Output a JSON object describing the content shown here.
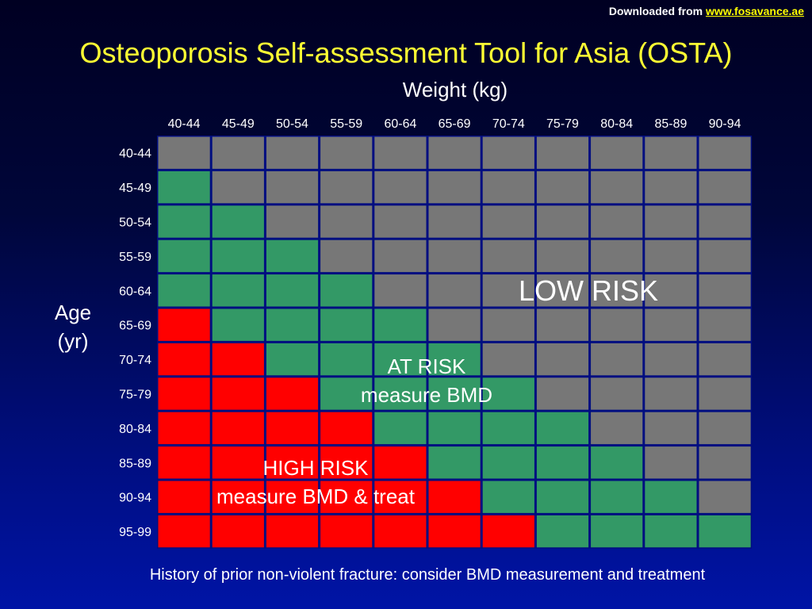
{
  "source": {
    "prefix": "Downloaded from ",
    "link": "www.fosavance.ae"
  },
  "colors": {
    "low": "#777777",
    "at_risk": "#339966",
    "high": "#ff0000",
    "grid_lines": "#000e80",
    "title": "#ffff33"
  },
  "annotations": {
    "low": "LOW RISK",
    "at_risk_line1": "AT RISK",
    "at_risk_line2": "measure BMD",
    "high_line1": "HIGH RISK",
    "high_line2": "measure BMD & treat"
  },
  "footnote": "History of prior non-violent fracture: consider BMD measurement and treatment",
  "chart_data": {
    "type": "heatmap",
    "title": "Osteoporosis Self-assessment Tool for Asia (OSTA)",
    "xlabel": "Weight (kg)",
    "ylabel_line1": "Age",
    "ylabel_line2": "(yr)",
    "x": [
      "40-44",
      "45-49",
      "50-54",
      "55-59",
      "60-64",
      "65-69",
      "70-74",
      "75-79",
      "80-84",
      "85-89",
      "90-94"
    ],
    "y": [
      "40-44",
      "45-49",
      "50-54",
      "55-59",
      "60-64",
      "65-69",
      "70-74",
      "75-79",
      "80-84",
      "85-89",
      "90-94",
      "95-99"
    ],
    "categories": [
      "low",
      "at_risk",
      "high"
    ],
    "cells": [
      [
        "low",
        "low",
        "low",
        "low",
        "low",
        "low",
        "low",
        "low",
        "low",
        "low",
        "low"
      ],
      [
        "at_risk",
        "low",
        "low",
        "low",
        "low",
        "low",
        "low",
        "low",
        "low",
        "low",
        "low"
      ],
      [
        "at_risk",
        "at_risk",
        "low",
        "low",
        "low",
        "low",
        "low",
        "low",
        "low",
        "low",
        "low"
      ],
      [
        "at_risk",
        "at_risk",
        "at_risk",
        "low",
        "low",
        "low",
        "low",
        "low",
        "low",
        "low",
        "low"
      ],
      [
        "at_risk",
        "at_risk",
        "at_risk",
        "at_risk",
        "low",
        "low",
        "low",
        "low",
        "low",
        "low",
        "low"
      ],
      [
        "high",
        "at_risk",
        "at_risk",
        "at_risk",
        "at_risk",
        "low",
        "low",
        "low",
        "low",
        "low",
        "low"
      ],
      [
        "high",
        "high",
        "at_risk",
        "at_risk",
        "at_risk",
        "at_risk",
        "low",
        "low",
        "low",
        "low",
        "low"
      ],
      [
        "high",
        "high",
        "high",
        "at_risk",
        "at_risk",
        "at_risk",
        "at_risk",
        "low",
        "low",
        "low",
        "low"
      ],
      [
        "high",
        "high",
        "high",
        "high",
        "at_risk",
        "at_risk",
        "at_risk",
        "at_risk",
        "low",
        "low",
        "low"
      ],
      [
        "high",
        "high",
        "high",
        "high",
        "high",
        "at_risk",
        "at_risk",
        "at_risk",
        "at_risk",
        "low",
        "low"
      ],
      [
        "high",
        "high",
        "high",
        "high",
        "high",
        "high",
        "at_risk",
        "at_risk",
        "at_risk",
        "at_risk",
        "low"
      ],
      [
        "high",
        "high",
        "high",
        "high",
        "high",
        "high",
        "high",
        "at_risk",
        "at_risk",
        "at_risk",
        "at_risk"
      ]
    ]
  }
}
